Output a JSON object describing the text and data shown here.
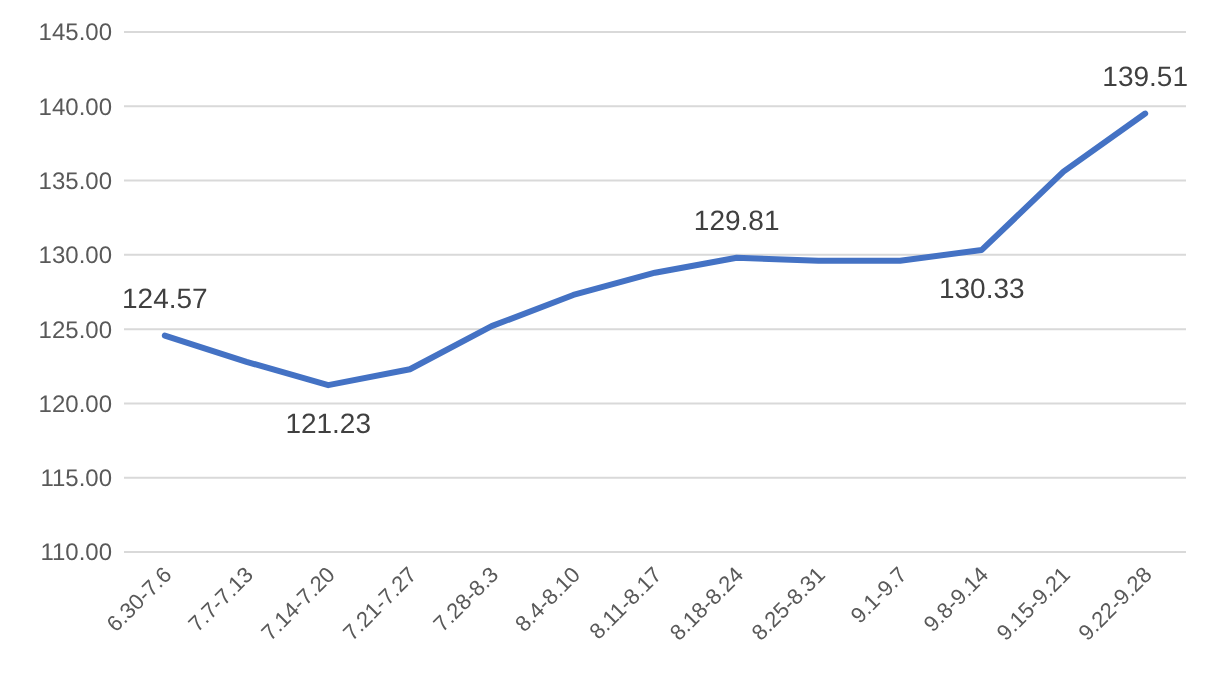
{
  "chart_data": {
    "type": "line",
    "categories": [
      "6.30-7.6",
      "7.7-7.13",
      "7.14-7.20",
      "7.21-7.27",
      "7.28-8.3",
      "8.4-8.10",
      "8.11-8.17",
      "8.18-8.24",
      "8.25-8.31",
      "9.1-9.7",
      "9.8-9.14",
      "9.15-9.21",
      "9.22-9.28"
    ],
    "series": [
      {
        "color": "#4472c4",
        "values": [
          124.57,
          122.8,
          121.23,
          122.3,
          125.2,
          127.3,
          128.8,
          129.81,
          129.6,
          129.6,
          130.33,
          135.6,
          139.51
        ],
        "value_labels": [
          "124.57",
          null,
          "121.23",
          null,
          null,
          null,
          null,
          "129.81",
          null,
          null,
          "130.33",
          null,
          "139.51"
        ]
      }
    ],
    "ylim": [
      110,
      145
    ],
    "yticks": [
      {
        "value": 110,
        "label": "110.00"
      },
      {
        "value": 115,
        "label": "115.00"
      },
      {
        "value": 120,
        "label": "120.00"
      },
      {
        "value": 125,
        "label": "125.00"
      },
      {
        "value": 130,
        "label": "130.00"
      },
      {
        "value": 135,
        "label": "135.00"
      },
      {
        "value": 140,
        "label": "140.00"
      },
      {
        "value": 145,
        "label": "145.00"
      }
    ],
    "grid": "y",
    "marker": "none",
    "line_style": "solid"
  }
}
